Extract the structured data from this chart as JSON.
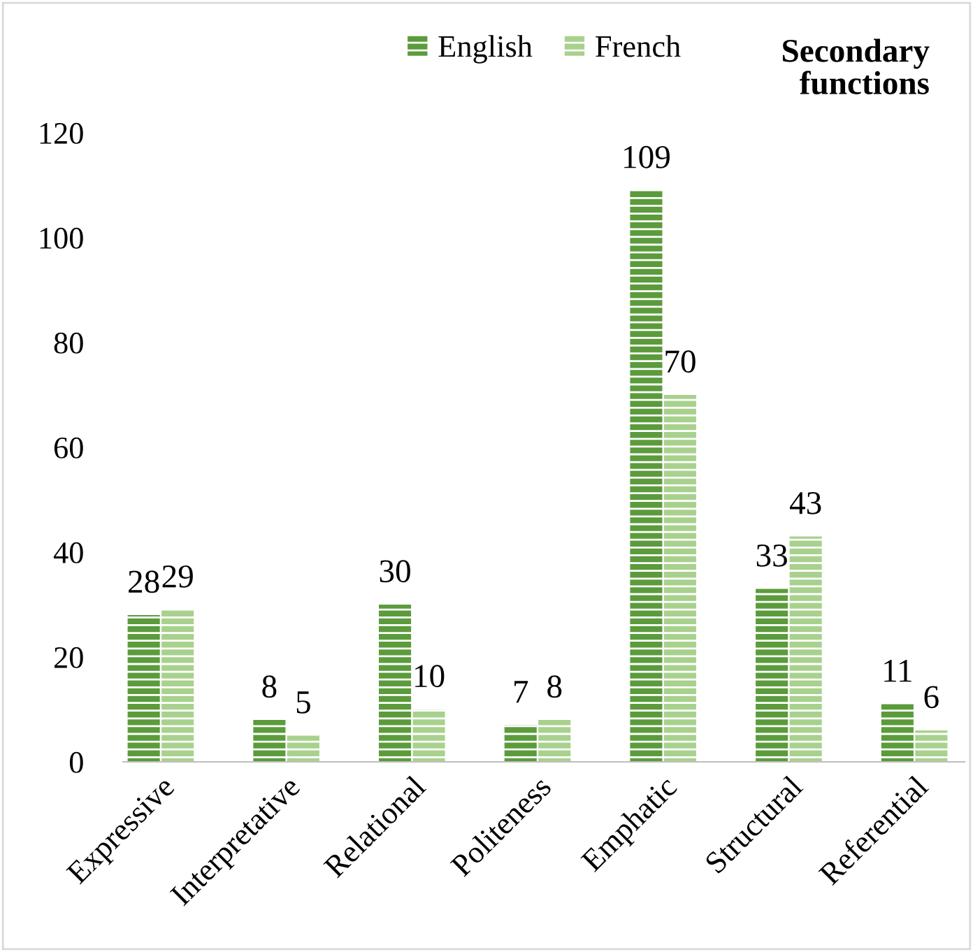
{
  "chart_data": {
    "type": "bar",
    "title": "Secondary functions",
    "categories": [
      "Expressive",
      "Interpretative",
      "Relational",
      "Politeness",
      "Emphatic",
      "Structural",
      "Referential"
    ],
    "series": [
      {
        "name": "English",
        "color": "#5b9b3c",
        "values": [
          28,
          8,
          30,
          7,
          109,
          33,
          11
        ]
      },
      {
        "name": "French",
        "color": "#a9d18e",
        "values": [
          29,
          5,
          10,
          8,
          70,
          43,
          6
        ]
      }
    ],
    "ylim": [
      0,
      120
    ],
    "yticks": [
      0,
      20,
      40,
      60,
      80,
      100,
      120
    ],
    "grid": false,
    "legend": "top",
    "data_labels": true
  }
}
